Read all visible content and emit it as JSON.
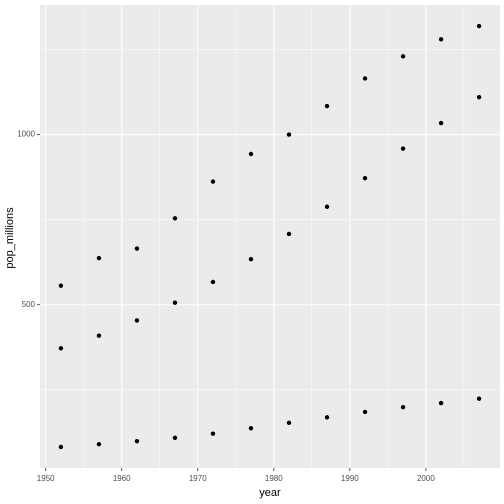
{
  "chart_data": {
    "type": "scatter",
    "x_label": "year",
    "y_label": "pop_millions",
    "x": [
      1952,
      1957,
      1962,
      1967,
      1972,
      1977,
      1982,
      1987,
      1992,
      1997,
      2002,
      2007
    ],
    "series": [
      {
        "color": "#000000",
        "values": [
          556,
          637,
          665,
          754,
          862,
          943,
          1000,
          1084,
          1165,
          1230,
          1280,
          1319
        ]
      },
      {
        "color": "#000000",
        "values": [
          372,
          409,
          454,
          506,
          567,
          634,
          708,
          788,
          872,
          959,
          1034,
          1110
        ]
      },
      {
        "color": "#000000",
        "values": [
          82,
          90,
          99,
          109,
          121,
          137,
          153,
          169,
          185,
          199,
          211,
          224
        ]
      }
    ],
    "xlim": [
      1949.25,
      2009.75
    ],
    "xticks": [
      1950,
      1960,
      1970,
      1980,
      1990,
      2000
    ],
    "ylim": [
      20.2,
      1380.9
    ],
    "yticks": [
      500,
      1000
    ],
    "grid": true
  }
}
